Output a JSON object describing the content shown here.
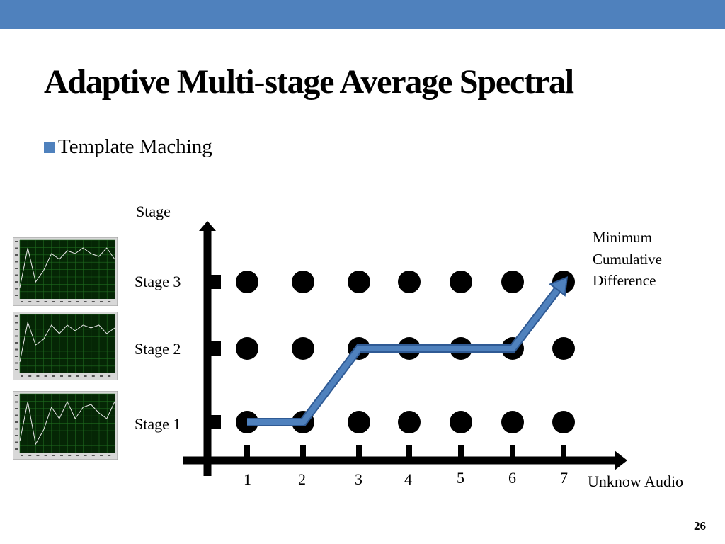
{
  "title": "Adaptive Multi-stage Average Spectral",
  "bullet": "Template Maching",
  "diagram": {
    "y_axis_label": "Stage",
    "x_axis_label": "Unknow Audio",
    "stages": [
      "Stage 1",
      "Stage 2",
      "Stage 3"
    ],
    "columns": [
      "1",
      "2",
      "3",
      "4",
      "5",
      "6",
      "7"
    ],
    "path": [
      {
        "col": 1,
        "stage": 1
      },
      {
        "col": 2,
        "stage": 1
      },
      {
        "col": 3,
        "stage": 2
      },
      {
        "col": 4,
        "stage": 2
      },
      {
        "col": 5,
        "stage": 2
      },
      {
        "col": 6,
        "stage": 2
      },
      {
        "col": 7,
        "stage": 3
      }
    ],
    "annotation": [
      "Minimum",
      "Cumulative",
      "Difference"
    ],
    "colors": {
      "path": "#4f81bd",
      "dots": "#000000"
    }
  },
  "thumbnails": [
    {
      "values": [
        2,
        9,
        3,
        5,
        8,
        7,
        8.5,
        8,
        9,
        8,
        7.5,
        9,
        7
      ]
    },
    {
      "values": [
        2,
        9,
        5,
        6,
        8.5,
        7,
        8.5,
        7.5,
        8.5,
        8,
        8.5,
        7,
        8
      ]
    },
    {
      "values": [
        2,
        9,
        1.5,
        4,
        8,
        6,
        9,
        6,
        8,
        8.5,
        7,
        6,
        9
      ]
    }
  ],
  "page_number": "26"
}
